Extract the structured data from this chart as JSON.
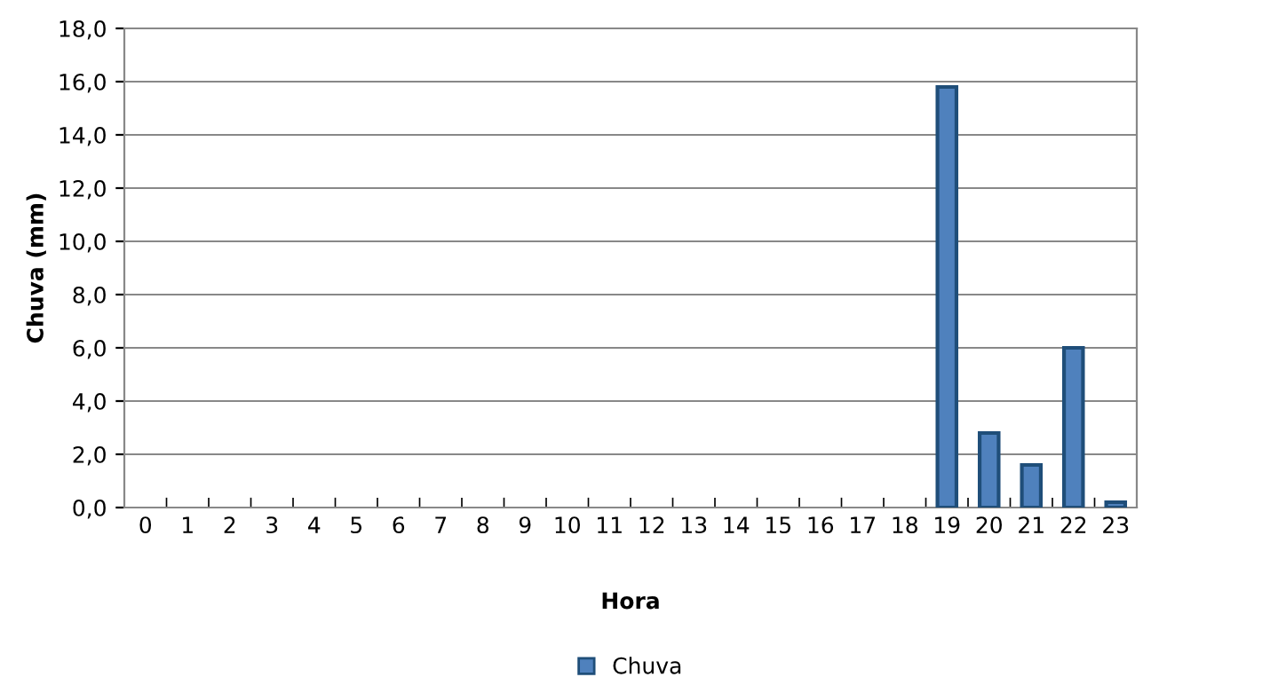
{
  "chart_data": {
    "type": "bar",
    "xlabel": "Hora",
    "ylabel": "Chuva (mm)",
    "categories": [
      "0",
      "1",
      "2",
      "3",
      "4",
      "5",
      "6",
      "7",
      "8",
      "9",
      "10",
      "11",
      "12",
      "13",
      "14",
      "15",
      "16",
      "17",
      "18",
      "19",
      "20",
      "21",
      "22",
      "23"
    ],
    "series": [
      {
        "name": "Chuva",
        "color": "#4f81bd",
        "values": [
          0,
          0,
          0,
          0,
          0,
          0,
          0,
          0,
          0,
          0,
          0,
          0,
          0,
          0,
          0,
          0,
          0,
          0,
          0,
          15.8,
          2.8,
          1.6,
          6.0,
          0.2
        ]
      }
    ],
    "ylim": [
      0,
      18
    ],
    "yticks": [
      {
        "value": 0,
        "label": "0,0"
      },
      {
        "value": 2,
        "label": "2,0"
      },
      {
        "value": 4,
        "label": "4,0"
      },
      {
        "value": 6,
        "label": "6,0"
      },
      {
        "value": 8,
        "label": "8,0"
      },
      {
        "value": 10,
        "label": "10,0"
      },
      {
        "value": 12,
        "label": "12,0"
      },
      {
        "value": 14,
        "label": "14,0"
      },
      {
        "value": 16,
        "label": "16,0"
      },
      {
        "value": 18,
        "label": "18,0"
      }
    ],
    "grid": "y",
    "legend": "bottom"
  }
}
